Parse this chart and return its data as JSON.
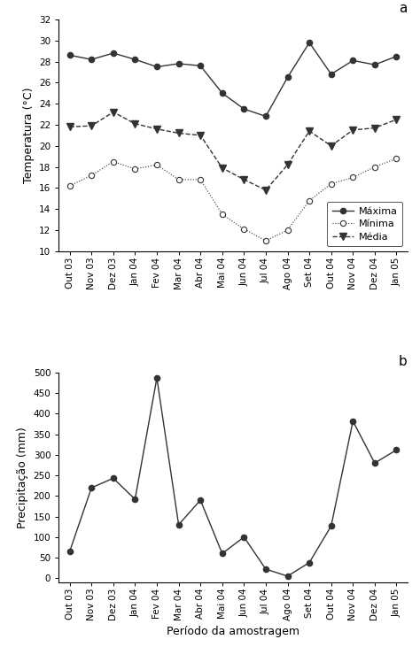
{
  "months": [
    "Out 03",
    "Nov 03",
    "Dez 03",
    "Jan 04",
    "Fev 04",
    "Mar 04",
    "Abr 04",
    "Mai 04",
    "Jun 04",
    "Jul 04",
    "Ago 04",
    "Set 04",
    "Out 04",
    "Nov 04",
    "Dez 04",
    "Jan 05"
  ],
  "maxima": [
    28.6,
    28.2,
    28.8,
    28.2,
    27.5,
    27.8,
    27.6,
    25.0,
    23.5,
    22.8,
    26.5,
    29.8,
    26.8,
    28.1,
    27.7,
    28.5
  ],
  "minima": [
    16.2,
    17.2,
    18.5,
    17.8,
    18.2,
    16.8,
    16.8,
    13.5,
    12.1,
    11.0,
    12.0,
    14.8,
    16.4,
    17.0,
    18.0,
    18.8
  ],
  "media": [
    21.8,
    21.9,
    23.2,
    22.1,
    21.6,
    21.2,
    21.0,
    17.9,
    16.8,
    15.8,
    18.2,
    21.4,
    20.0,
    21.5,
    21.7,
    22.5
  ],
  "precipitacao": [
    65,
    220,
    243,
    192,
    487,
    130,
    190,
    60,
    100,
    22,
    5,
    38,
    127,
    382,
    280,
    312
  ],
  "temp_ylim": [
    10,
    32
  ],
  "temp_yticks": [
    10,
    12,
    14,
    16,
    18,
    20,
    22,
    24,
    26,
    28,
    30,
    32
  ],
  "precip_ylim": [
    -10,
    500
  ],
  "precip_yticks": [
    0,
    50,
    100,
    150,
    200,
    250,
    300,
    350,
    400,
    450,
    500
  ],
  "ylabel_temp": "Temperatura (°C)",
  "ylabel_precip": "Precipitação (mm)",
  "xlabel": "Período da amostragem",
  "label_maxima": "Máxima",
  "label_minima": "Mínima",
  "label_media": "Média",
  "color": "#333333",
  "panel_a": "a",
  "panel_b": "b"
}
